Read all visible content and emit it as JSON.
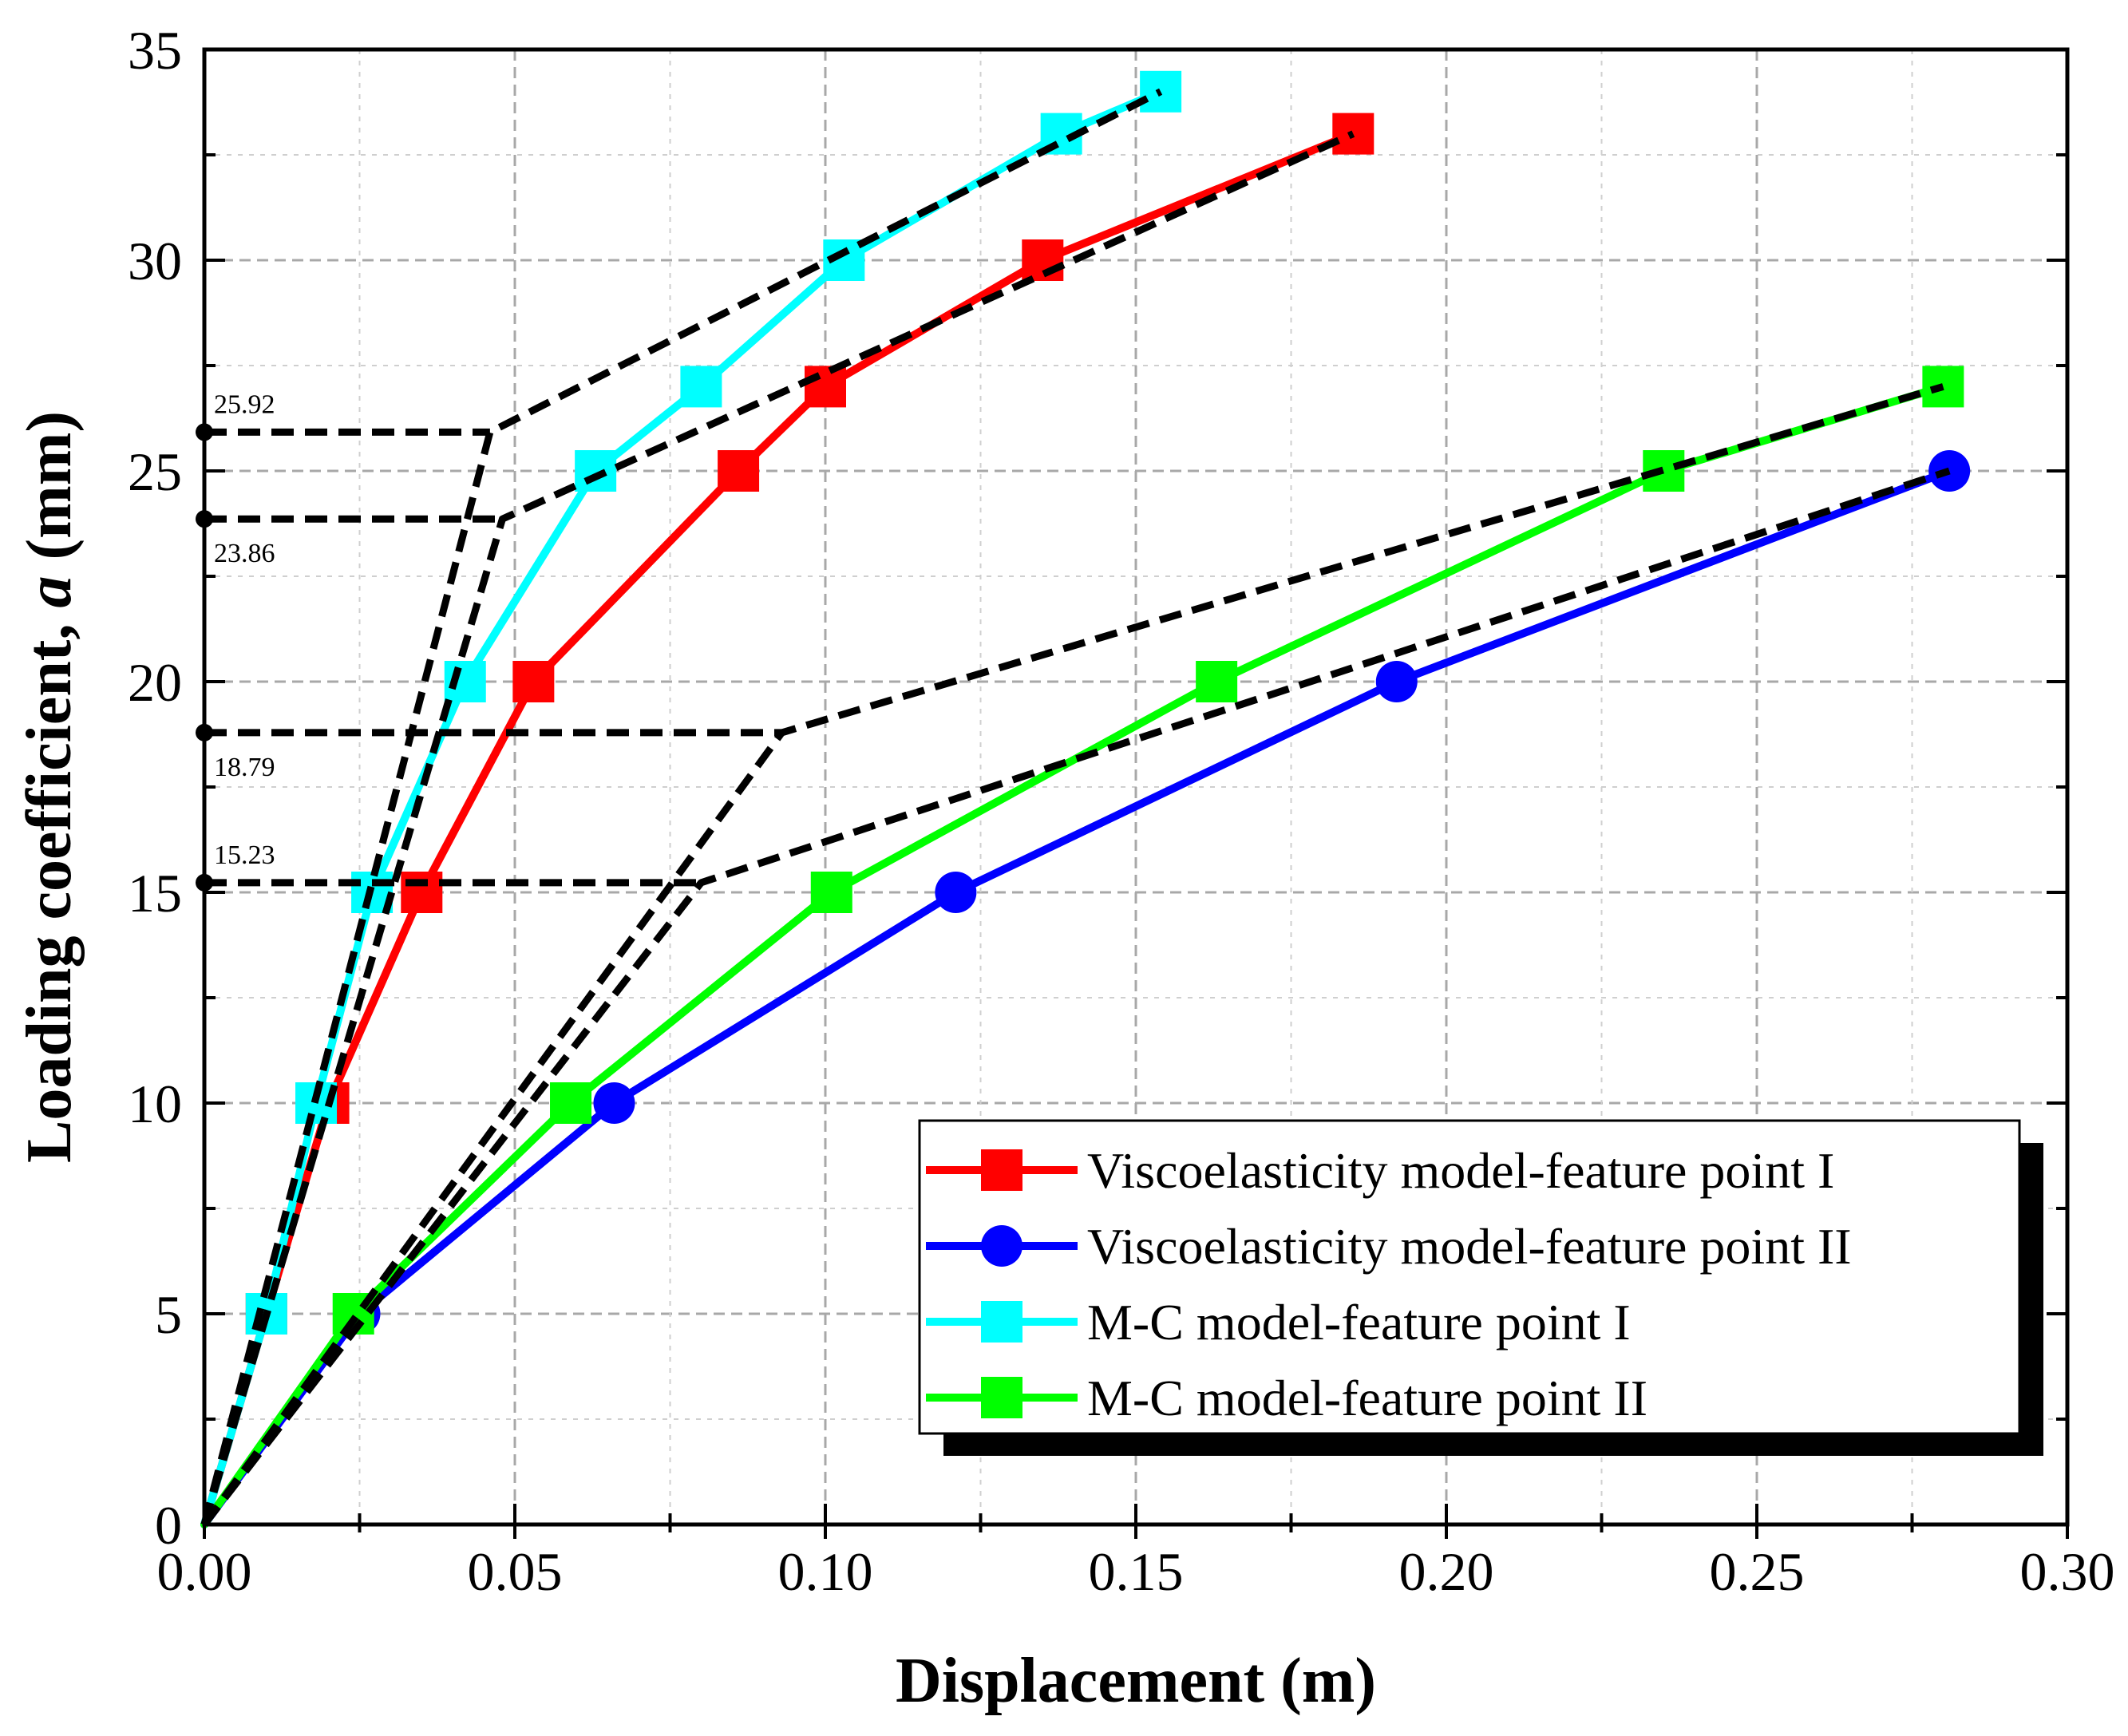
{
  "chart_data": {
    "type": "line",
    "xlabel": "Displacement (m)",
    "ylabel_main": "Loading coefficient, ",
    "ylabel_italic": "a",
    "ylabel_unit": " (mm)",
    "xlim": [
      0,
      0.3
    ],
    "ylim": [
      0,
      35
    ],
    "xticks": [
      0,
      0.05,
      0.1,
      0.15,
      0.2,
      0.25,
      0.3
    ],
    "xtick_labels": [
      "0.00",
      "0.05",
      "0.10",
      "0.15",
      "0.20",
      "0.25",
      "0.30"
    ],
    "yticks": [
      0,
      5,
      10,
      15,
      20,
      25,
      30,
      35
    ],
    "ytick_labels": [
      "0",
      "5",
      "10",
      "15",
      "20",
      "25",
      "30",
      "35"
    ],
    "grid": true,
    "legend_position": "bottom-right",
    "series": [
      {
        "name": "Viscoelasticity model-feature point I",
        "color": "#ff0000",
        "marker": "square",
        "x": [
          0,
          0.01,
          0.02,
          0.035,
          0.053,
          0.086,
          0.1,
          0.135,
          0.185
        ],
        "y": [
          0,
          5,
          10,
          15,
          20,
          25,
          27,
          30,
          33
        ]
      },
      {
        "name": "Viscoelasticity model-feature point II",
        "color": "#0000ff",
        "marker": "circle",
        "x": [
          0,
          0.025,
          0.066,
          0.121,
          0.192,
          0.281
        ],
        "y": [
          0,
          5,
          10,
          15,
          20,
          25
        ]
      },
      {
        "name": "M-C model-feature point I",
        "color": "#00ffff",
        "marker": "square",
        "x": [
          0,
          0.01,
          0.018,
          0.027,
          0.042,
          0.063,
          0.08,
          0.103,
          0.138,
          0.154
        ],
        "y": [
          0,
          5,
          10,
          15,
          20,
          25,
          27,
          30,
          33,
          34
        ]
      },
      {
        "name": "M-C model-feature point II",
        "color": "#00ff00",
        "marker": "square",
        "x": [
          0,
          0.024,
          0.059,
          0.101,
          0.163,
          0.235,
          0.28
        ],
        "y": [
          0,
          5,
          10,
          15,
          20,
          25,
          27
        ]
      }
    ],
    "fit_lines": [
      {
        "x": [
          0,
          0.046,
          0.154
        ],
        "y": [
          0,
          25.92,
          34
        ]
      },
      {
        "x": [
          0,
          0.048,
          0.185
        ],
        "y": [
          0,
          23.86,
          33
        ]
      },
      {
        "x": [
          0,
          0.093,
          0.28
        ],
        "y": [
          0,
          18.79,
          27
        ]
      },
      {
        "x": [
          0,
          0.08,
          0.281
        ],
        "y": [
          0,
          15.23,
          25
        ]
      }
    ],
    "annotations": [
      {
        "text": "25.92",
        "value": 25.92,
        "x_end": 0.046,
        "label_side": "above"
      },
      {
        "text": "23.86",
        "value": 23.86,
        "x_end": 0.048,
        "label_side": "below"
      },
      {
        "text": "18.79",
        "value": 18.79,
        "x_end": 0.093,
        "label_side": "below"
      },
      {
        "text": "15.23",
        "value": 15.23,
        "x_end": 0.08,
        "label_side": "above"
      }
    ]
  }
}
